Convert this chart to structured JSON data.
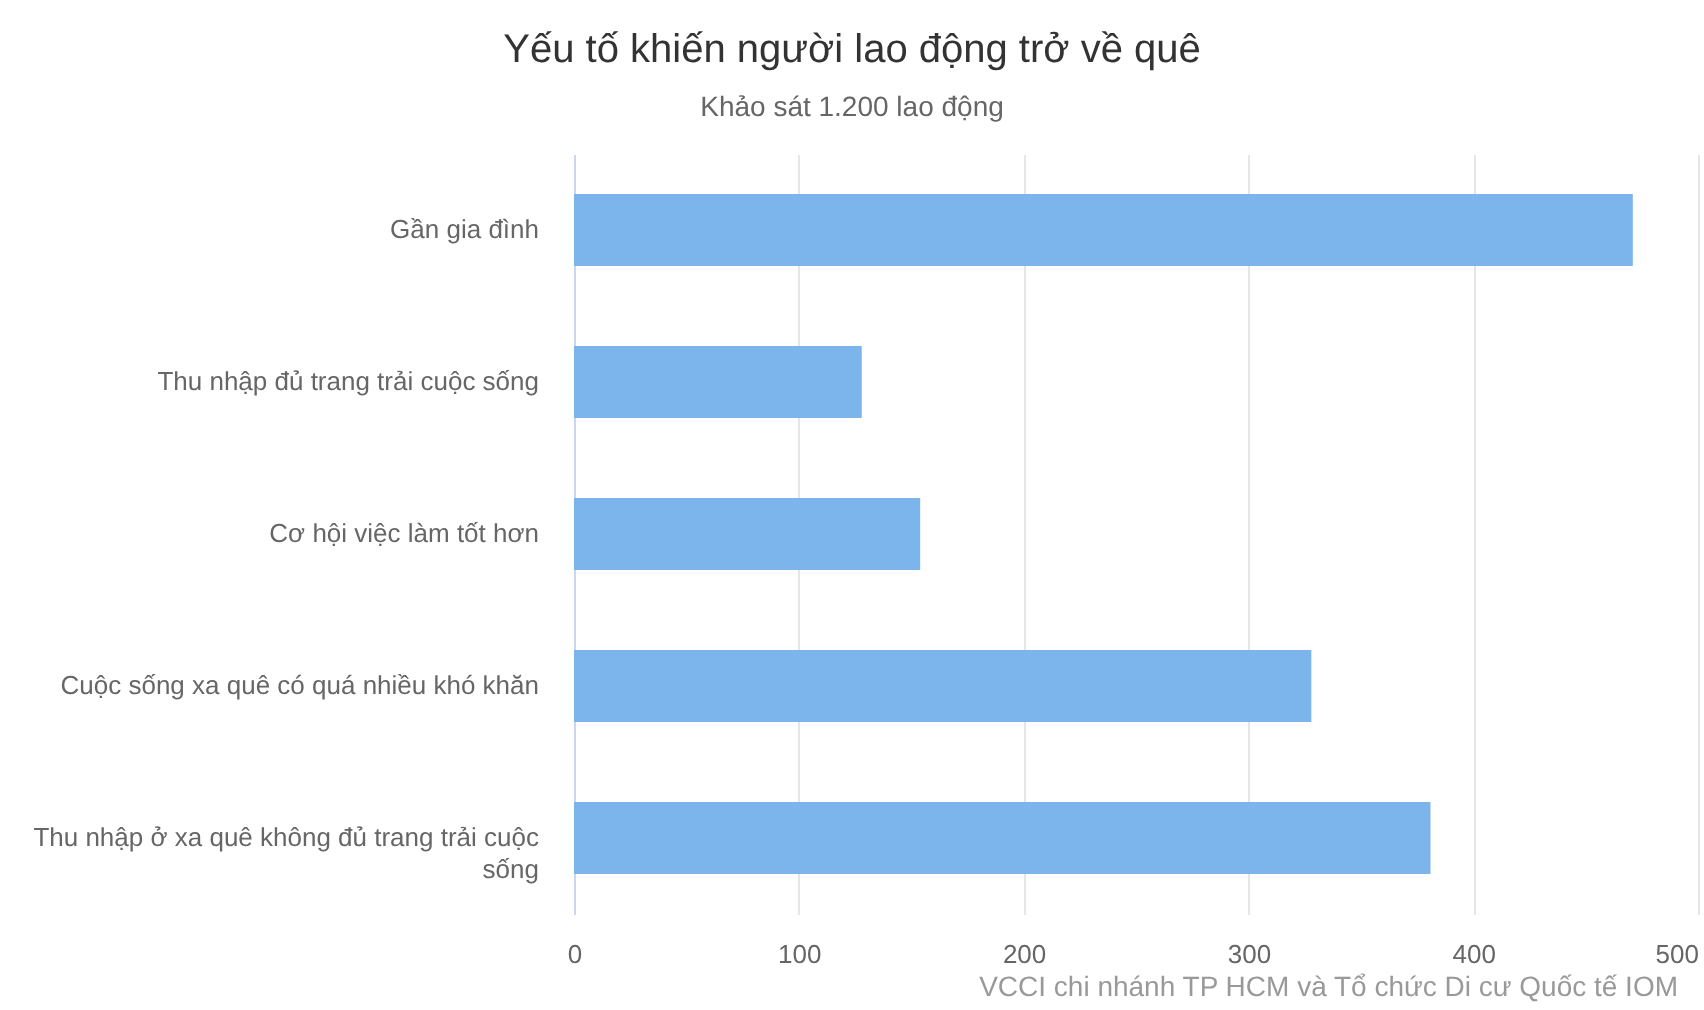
{
  "chart_data": {
    "type": "bar",
    "orientation": "horizontal",
    "title": "Yếu tố khiến người lao động trở về quê",
    "subtitle": "Khảo sát 1.200 lao động",
    "categories": [
      "Gần gia đình",
      "Thu nhập đủ trang trải cuộc sống",
      "Cơ hội việc làm tốt hơn",
      "Cuộc sống xa quê có quá nhiều khó khăn",
      "Thu nhập ở xa quê không đủ trang trải cuộc sống"
    ],
    "values": [
      471,
      128,
      154,
      328,
      381
    ],
    "color": "#7cb5ec",
    "xlim": [
      0,
      500
    ],
    "xticks": [
      0,
      100,
      200,
      300,
      400,
      500
    ],
    "grid": "x",
    "annotations": [
      "VCCI chi nhánh TP HCM và Tổ chức Di cư Quốc tế IOM"
    ]
  }
}
